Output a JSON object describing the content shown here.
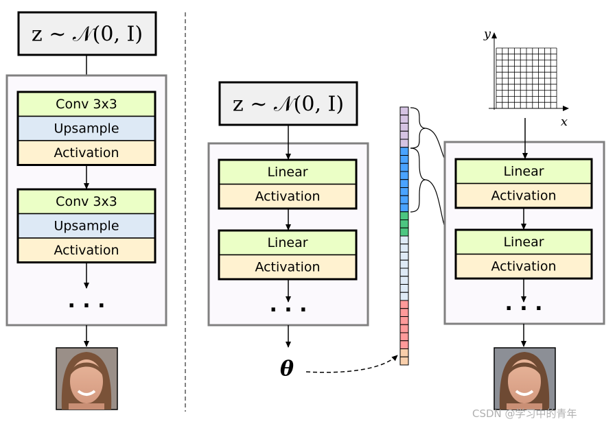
{
  "colors": {
    "conv_linear": "#ebffc6",
    "upsample": "#dde9f5",
    "activation": "#fff2d0",
    "outer_box_fill": "#fbf9fd",
    "outer_box_stroke": "#808080",
    "latent_box_fill": "#f0f0f0"
  },
  "left": {
    "latent": "z ∼ 𝒩(0, I)",
    "blocks": [
      [
        "Conv 3x3",
        "Upsample",
        "Activation"
      ],
      [
        "Conv 3x3",
        "Upsample",
        "Activation"
      ]
    ],
    "ellipsis": "· · ·"
  },
  "middle": {
    "latent": "z ∼ 𝒩(0, I)",
    "blocks": [
      [
        "Linear",
        "Activation"
      ],
      [
        "Linear",
        "Activation"
      ]
    ],
    "ellipsis": "· · ·",
    "output": "θ"
  },
  "right": {
    "blocks": [
      [
        "Linear",
        "Activation"
      ],
      [
        "Linear",
        "Activation"
      ]
    ],
    "ellipsis": "· · ·",
    "axis_x": "x",
    "axis_y": "y"
  },
  "vector": {
    "segments": [
      {
        "color": "#d5c3e3",
        "count": 5
      },
      {
        "color": "#4aa3ff",
        "count": 8
      },
      {
        "color": "#4cc681",
        "count": 3
      },
      {
        "color": "#deeaf6",
        "count": 8
      },
      {
        "color": "#ff9a9a",
        "count": 6
      },
      {
        "color": "#f9cfab",
        "count": 2
      }
    ]
  },
  "watermark": "CSDN @学习中的青年"
}
